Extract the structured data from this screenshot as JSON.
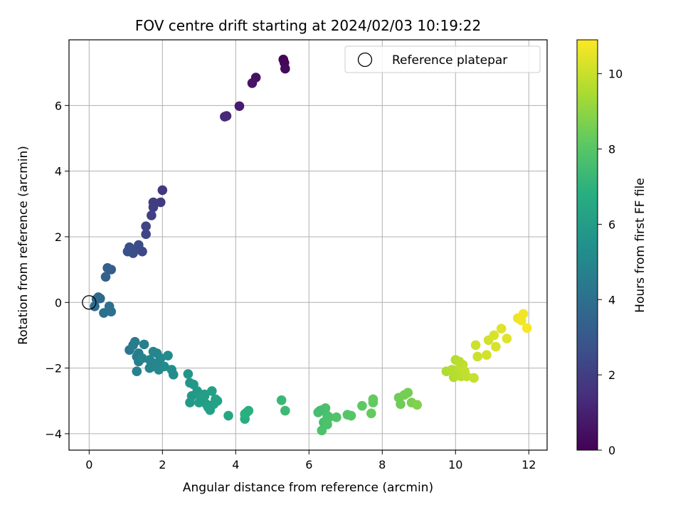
{
  "chart_data": {
    "type": "scatter",
    "title": "FOV centre drift starting at 2024/02/03 10:19:22",
    "xlabel": "Angular distance from reference (arcmin)",
    "ylabel": "Rotation from reference (arcmin)",
    "xlim": [
      -0.55,
      12.5
    ],
    "ylim": [
      -4.5,
      8.0
    ],
    "xticks": [
      0,
      2,
      4,
      6,
      8,
      10,
      12
    ],
    "yticks": [
      -4,
      -2,
      0,
      2,
      4,
      6
    ],
    "grid": true,
    "legend": {
      "position": "top-right",
      "entries": [
        "Reference platepar"
      ]
    },
    "reference_point": {
      "x": 0,
      "y": 0
    },
    "colorbar": {
      "label": "Hours from first FF file",
      "colormap": "viridis",
      "range": [
        0,
        10.9
      ],
      "ticks": [
        0,
        2,
        4,
        6,
        8,
        10
      ]
    },
    "series": [
      {
        "x": [
          5.3,
          5.33,
          5.35,
          4.55,
          4.45,
          4.1,
          3.75,
          3.7,
          2.0,
          1.95,
          1.75,
          1.75,
          1.7,
          1.55,
          1.55,
          1.45,
          1.35,
          1.25,
          1.2,
          1.1,
          1.05,
          0.6,
          0.5,
          0.45,
          0.3,
          0.25,
          0.2,
          0.15,
          0.4,
          0.6,
          0.55,
          1.1,
          1.2,
          1.25,
          1.35,
          1.3,
          1.5,
          1.35,
          1.3,
          1.45,
          1.65,
          1.7,
          1.75,
          1.8,
          1.85,
          1.9,
          1.95,
          2.05,
          2.15,
          2.25,
          2.3,
          1.65,
          1.85,
          2.7,
          2.75,
          2.85,
          2.8,
          2.75,
          2.95,
          3.05,
          3.1,
          3.15,
          3.2,
          3.3,
          3.35,
          3.45,
          3.5,
          3.25,
          3.15,
          3.0,
          3.4,
          3.8,
          4.25,
          4.3,
          4.35,
          4.25,
          5.25,
          5.35,
          6.25,
          6.35,
          6.45,
          6.5,
          6.4,
          6.5,
          6.35,
          6.55,
          6.3,
          6.75,
          7.05,
          7.15,
          7.45,
          7.75,
          7.75,
          7.7,
          8.45,
          8.5,
          8.6,
          8.7,
          8.8,
          8.95,
          9.75,
          9.9,
          10.0,
          10.05,
          10.1,
          10.15,
          10.2,
          10.25,
          9.95,
          10.1,
          10.3,
          10.5,
          10.55,
          10.6,
          10.85,
          10.9,
          11.05,
          11.1,
          11.25,
          11.4,
          11.7,
          11.85,
          11.8,
          11.95
        ]
      }
    ],
    "y_values": [
      7.4,
      7.3,
      7.12,
      6.85,
      6.68,
      5.98,
      5.68,
      5.66,
      3.42,
      3.05,
      3.05,
      2.9,
      2.65,
      2.32,
      2.08,
      1.55,
      1.75,
      1.6,
      1.5,
      1.68,
      1.55,
      1.0,
      1.05,
      0.78,
      0.12,
      0.16,
      0.1,
      -0.12,
      -0.32,
      -0.28,
      -0.12,
      -1.45,
      -1.3,
      -1.2,
      -1.55,
      -1.65,
      -1.28,
      -1.8,
      -2.1,
      -1.7,
      -2.0,
      -1.82,
      -1.5,
      -1.95,
      -1.55,
      -2.05,
      -1.7,
      -1.95,
      -1.62,
      -2.05,
      -2.2,
      -1.75,
      -1.85,
      -2.18,
      -2.45,
      -2.5,
      -2.85,
      -3.05,
      -2.7,
      -2.9,
      -3.0,
      -2.8,
      -3.1,
      -3.28,
      -2.7,
      -2.95,
      -3.0,
      -3.2,
      -2.85,
      -3.05,
      -3.1,
      -3.45,
      -3.55,
      -3.35,
      -3.3,
      -3.4,
      -2.98,
      -3.3,
      -3.35,
      -3.28,
      -3.22,
      -3.45,
      -3.65,
      -3.72,
      -3.9,
      -3.5,
      -3.3,
      -3.5,
      -3.42,
      -3.45,
      -3.15,
      -2.95,
      -3.05,
      -3.38,
      -2.9,
      -3.1,
      -2.82,
      -2.75,
      -3.05,
      -3.12,
      -2.1,
      -2.05,
      -1.75,
      -2.2,
      -2.05,
      -2.25,
      -1.9,
      -2.1,
      -2.28,
      -1.8,
      -2.25,
      -2.3,
      -1.3,
      -1.65,
      -1.6,
      -1.15,
      -1.0,
      -1.35,
      -0.8,
      -1.1,
      -0.48,
      -0.35,
      -0.55,
      -0.78
    ],
    "hours": [
      0.1,
      0.2,
      0.3,
      0.5,
      0.6,
      0.9,
      1.2,
      1.3,
      1.8,
      1.9,
      2.0,
      2.0,
      2.1,
      2.2,
      2.3,
      2.4,
      2.5,
      2.5,
      2.6,
      2.6,
      2.7,
      3.2,
      3.3,
      3.4,
      3.6,
      3.7,
      3.8,
      3.9,
      4.0,
      4.1,
      4.1,
      4.4,
      4.5,
      4.5,
      4.6,
      4.6,
      4.7,
      4.7,
      4.8,
      4.8,
      4.9,
      4.9,
      5.0,
      5.0,
      5.0,
      5.1,
      5.1,
      5.2,
      5.2,
      5.3,
      5.3,
      4.9,
      5.0,
      5.7,
      5.7,
      5.8,
      5.8,
      5.9,
      5.9,
      6.0,
      6.0,
      6.1,
      6.1,
      6.2,
      6.2,
      6.3,
      6.3,
      6.2,
      6.1,
      6.0,
      6.3,
      6.5,
      6.8,
      6.8,
      6.9,
      6.9,
      7.3,
      7.4,
      7.6,
      7.6,
      7.7,
      7.7,
      7.7,
      7.8,
      7.8,
      7.8,
      7.6,
      7.9,
      8.0,
      8.0,
      8.2,
      8.3,
      8.3,
      8.3,
      8.5,
      8.5,
      8.6,
      8.6,
      8.7,
      8.8,
      9.6,
      9.7,
      9.7,
      9.8,
      9.8,
      9.8,
      9.9,
      9.9,
      9.7,
      9.8,
      9.9,
      10.0,
      10.1,
      10.1,
      10.2,
      10.2,
      10.3,
      10.3,
      10.4,
      10.4,
      10.6,
      10.7,
      10.7,
      10.8
    ]
  }
}
